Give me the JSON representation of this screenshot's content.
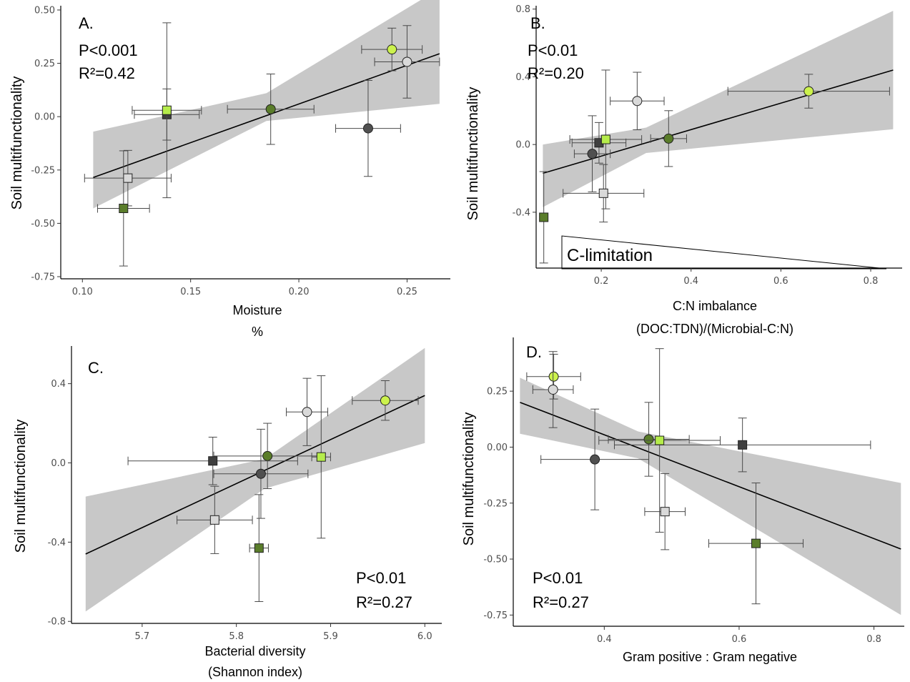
{
  "chart_data": [
    {
      "panel": "A.",
      "type": "scatter",
      "xlabel": "Moisture",
      "xlabel2": "%",
      "ylabel": "Soil multifunctionality",
      "stats": [
        "P<0.001",
        "R²=0.42"
      ],
      "xlim": [
        0.09,
        0.27
      ],
      "ylim": [
        -0.76,
        0.52
      ],
      "xticks": [
        0.1,
        0.15,
        0.2,
        0.25
      ],
      "xtick_labels": [
        "0.10",
        "0.15",
        "0.20",
        "0.25"
      ],
      "yticks": [
        -0.75,
        -0.5,
        -0.25,
        0.0,
        0.25,
        0.5
      ],
      "ytick_labels": [
        "-0.75",
        "-0.50",
        "-0.25",
        "0.00",
        "0.25",
        "0.50"
      ],
      "fit": {
        "x": [
          0.105,
          0.265
        ],
        "y": [
          -0.285,
          0.295
        ]
      },
      "band": {
        "x": [
          0.105,
          0.185,
          0.265
        ],
        "upper": [
          -0.07,
          0.11,
          0.6
        ],
        "lower": [
          -0.43,
          -0.02,
          0.06
        ]
      },
      "points": [
        {
          "x": 0.243,
          "y": 0.315,
          "xerr": 0.014,
          "yerr": 0.1,
          "shape": "circle",
          "color": "#ccf24d"
        },
        {
          "x": 0.25,
          "y": 0.257,
          "xerr": 0.015,
          "yerr": 0.17,
          "shape": "circle",
          "color": "#d9d9d9"
        },
        {
          "x": 0.187,
          "y": 0.035,
          "xerr": 0.02,
          "yerr": 0.165,
          "shape": "circle",
          "color": "#5a7d2a"
        },
        {
          "x": 0.232,
          "y": -0.055,
          "xerr": 0.015,
          "yerr": 0.225,
          "shape": "circle",
          "color": "#505050"
        },
        {
          "x": 0.139,
          "y": 0.01,
          "xerr": 0.015,
          "yerr": 0.12,
          "shape": "square",
          "color": "#3f3f3f"
        },
        {
          "x": 0.139,
          "y": 0.03,
          "xerr": 0.016,
          "yerr": 0.41,
          "shape": "square",
          "color": "#b5ec4b"
        },
        {
          "x": 0.121,
          "y": -0.288,
          "xerr": 0.02,
          "yerr": 0.13,
          "shape": "square",
          "color": "#d9d9d9"
        },
        {
          "x": 0.119,
          "y": -0.43,
          "xerr": 0.012,
          "yerr": 0.27,
          "shape": "square",
          "color": "#5a7d2a"
        }
      ]
    },
    {
      "panel": "B.",
      "type": "scatter",
      "xlabel": "C:N imbalance",
      "xlabel2": "(DOC:TDN)/(Microbial-C:N)",
      "ylabel": "Soil multifunctionality",
      "stats": [
        "P<0.01",
        "R²=0.20"
      ],
      "annotation": "C-limitation",
      "xlim": [
        0.055,
        0.87
      ],
      "ylim": [
        -0.73,
        0.82
      ],
      "xticks": [
        0.2,
        0.4,
        0.6,
        0.8
      ],
      "xtick_labels": [
        "0.2",
        "0.4",
        "0.6",
        "0.8"
      ],
      "yticks": [
        -0.4,
        0.0,
        0.4,
        0.8
      ],
      "ytick_labels": [
        "-0.4",
        "0.0",
        "0.4",
        "0.8"
      ],
      "fit": {
        "x": [
          0.07,
          0.85
        ],
        "y": [
          -0.17,
          0.44
        ]
      },
      "band": {
        "x": [
          0.07,
          0.3,
          0.85
        ],
        "upper": [
          0.0,
          0.1,
          0.79
        ],
        "lower": [
          -0.37,
          -0.05,
          0.09
        ]
      },
      "points": [
        {
          "x": 0.662,
          "y": 0.315,
          "xerr": 0.18,
          "yerr": 0.1,
          "shape": "circle",
          "color": "#ccf24d"
        },
        {
          "x": 0.28,
          "y": 0.257,
          "xerr": 0.06,
          "yerr": 0.17,
          "shape": "circle",
          "color": "#d9d9d9"
        },
        {
          "x": 0.35,
          "y": 0.035,
          "xerr": 0.04,
          "yerr": 0.165,
          "shape": "circle",
          "color": "#5a7d2a"
        },
        {
          "x": 0.18,
          "y": -0.055,
          "xerr": 0.04,
          "yerr": 0.225,
          "shape": "circle",
          "color": "#505050"
        },
        {
          "x": 0.195,
          "y": 0.01,
          "xerr": 0.06,
          "yerr": 0.12,
          "shape": "square",
          "color": "#3f3f3f"
        },
        {
          "x": 0.21,
          "y": 0.03,
          "xerr": 0.08,
          "yerr": 0.41,
          "shape": "square",
          "color": "#b5ec4b"
        },
        {
          "x": 0.205,
          "y": -0.288,
          "xerr": 0.09,
          "yerr": 0.17,
          "shape": "square",
          "color": "#d9d9d9"
        },
        {
          "x": 0.072,
          "y": -0.43,
          "xerr": 0.0,
          "yerr": 0.27,
          "shape": "square",
          "color": "#5a7d2a"
        }
      ]
    },
    {
      "panel": "C.",
      "type": "scatter",
      "xlabel": "Bacterial diversity",
      "xlabel2": "(Shannon index)",
      "ylabel": "Soil multifunctionality",
      "stats": [
        "P<0.01",
        "R²=0.27"
      ],
      "xlim": [
        5.625,
        6.018
      ],
      "ylim": [
        -0.81,
        0.59
      ],
      "xticks": [
        5.7,
        5.8,
        5.9,
        6.0
      ],
      "xtick_labels": [
        "5.7",
        "5.8",
        "5.9",
        "6.0"
      ],
      "yticks": [
        -0.8,
        -0.4,
        0.0,
        0.4
      ],
      "ytick_labels": [
        "-0.8",
        "-0.4",
        "0.0",
        "0.4"
      ],
      "fit": {
        "x": [
          5.64,
          6.0
        ],
        "y": [
          -0.46,
          0.34
        ]
      },
      "band": {
        "x": [
          5.64,
          5.83,
          6.0
        ],
        "upper": [
          -0.17,
          0.02,
          0.58
        ],
        "lower": [
          -0.75,
          -0.13,
          0.1
        ]
      },
      "points": [
        {
          "x": 5.958,
          "y": 0.315,
          "xerr": 0.035,
          "yerr": 0.1,
          "shape": "circle",
          "color": "#ccf24d"
        },
        {
          "x": 5.875,
          "y": 0.257,
          "xerr": 0.022,
          "yerr": 0.17,
          "shape": "circle",
          "color": "#d9d9d9"
        },
        {
          "x": 5.833,
          "y": 0.035,
          "xerr": 0.057,
          "yerr": 0.165,
          "shape": "circle",
          "color": "#5a7d2a"
        },
        {
          "x": 5.826,
          "y": -0.055,
          "xerr": 0.05,
          "yerr": 0.225,
          "shape": "circle",
          "color": "#505050"
        },
        {
          "x": 5.775,
          "y": 0.01,
          "xerr": 0.09,
          "yerr": 0.12,
          "shape": "square",
          "color": "#3f3f3f"
        },
        {
          "x": 5.89,
          "y": 0.03,
          "xerr": 0.01,
          "yerr": 0.41,
          "shape": "square",
          "color": "#b5ec4b"
        },
        {
          "x": 5.777,
          "y": -0.288,
          "xerr": 0.04,
          "yerr": 0.17,
          "shape": "square",
          "color": "#d9d9d9"
        },
        {
          "x": 5.824,
          "y": -0.43,
          "xerr": 0.01,
          "yerr": 0.27,
          "shape": "square",
          "color": "#5a7d2a"
        }
      ]
    },
    {
      "panel": "D.",
      "type": "scatter",
      "xlabel": "Gram positive : Gram negative",
      "ylabel": "Soil multifunctionality",
      "stats": [
        "P<0.01",
        "R²=0.27"
      ],
      "xlim": [
        0.265,
        0.845
      ],
      "ylim": [
        -0.8,
        0.49
      ],
      "xticks": [
        0.4,
        0.6,
        0.8
      ],
      "xtick_labels": [
        "0.4",
        "0.6",
        "0.8"
      ],
      "yticks": [
        -0.75,
        -0.5,
        -0.25,
        0.0,
        0.25
      ],
      "ytick_labels": [
        "-0.75",
        "-0.50",
        "-0.25",
        "0.00",
        "0.25"
      ],
      "fit": {
        "x": [
          0.275,
          0.84
        ],
        "y": [
          0.2,
          -0.455
        ]
      },
      "band": {
        "x": [
          0.275,
          0.45,
          0.84
        ],
        "upper": [
          0.31,
          0.07,
          -0.16
        ],
        "lower": [
          0.06,
          -0.05,
          -0.75
        ]
      },
      "points": [
        {
          "x": 0.325,
          "y": 0.315,
          "xerr": 0.04,
          "yerr": 0.1,
          "shape": "circle",
          "color": "#ccf24d"
        },
        {
          "x": 0.324,
          "y": 0.257,
          "xerr": 0.03,
          "yerr": 0.17,
          "shape": "circle",
          "color": "#d9d9d9"
        },
        {
          "x": 0.466,
          "y": 0.035,
          "xerr": 0.06,
          "yerr": 0.165,
          "shape": "circle",
          "color": "#5a7d2a"
        },
        {
          "x": 0.386,
          "y": -0.055,
          "xerr": 0.08,
          "yerr": 0.225,
          "shape": "circle",
          "color": "#505050"
        },
        {
          "x": 0.605,
          "y": 0.01,
          "xerr": 0.19,
          "yerr": 0.12,
          "shape": "square",
          "color": "#3f3f3f"
        },
        {
          "x": 0.482,
          "y": 0.03,
          "xerr": 0.09,
          "yerr": 0.41,
          "shape": "square",
          "color": "#b5ec4b"
        },
        {
          "x": 0.49,
          "y": -0.288,
          "xerr": 0.03,
          "yerr": 0.17,
          "shape": "square",
          "color": "#d9d9d9"
        },
        {
          "x": 0.625,
          "y": -0.43,
          "xerr": 0.07,
          "yerr": 0.27,
          "shape": "square",
          "color": "#5a7d2a"
        }
      ]
    }
  ]
}
